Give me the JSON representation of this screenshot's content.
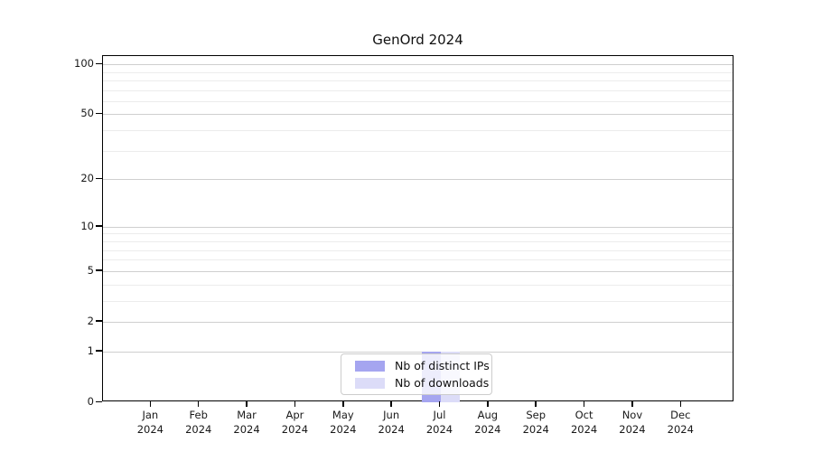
{
  "chart_data": {
    "type": "bar",
    "title": "GenOrd 2024",
    "x_tick_months": [
      "Jan",
      "Feb",
      "Mar",
      "Apr",
      "May",
      "Jun",
      "Jul",
      "Aug",
      "Sep",
      "Oct",
      "Nov",
      "Dec"
    ],
    "x_tick_year": "2024",
    "series": [
      {
        "name": "Nb of distinct IPs",
        "color": "#a5a5f0",
        "values": [
          0,
          0,
          0,
          0,
          0,
          0,
          1,
          0,
          0,
          0,
          0,
          0
        ]
      },
      {
        "name": "Nb of downloads",
        "color": "#dcdcf8",
        "values": [
          0,
          0,
          0,
          0,
          0,
          0,
          1,
          0,
          0,
          0,
          0,
          0
        ]
      }
    ],
    "y_scale": "log10(value+1)",
    "y_major_ticks": [
      0,
      1,
      2,
      5,
      10,
      20,
      50,
      100
    ],
    "y_minor_gridlines": [
      3,
      4,
      6,
      7,
      8,
      9,
      30,
      40,
      60,
      70,
      80,
      90
    ],
    "ylim": [
      0,
      112
    ],
    "grid": "horizontal",
    "legend": {
      "position": "bottom-center",
      "entries": [
        "Nb of distinct IPs",
        "Nb of downloads"
      ]
    },
    "colors": {
      "major_grid": "#cfcfcf",
      "minor_grid": "#ececec",
      "axis": "#000000",
      "text": "#191919",
      "background": "#ffffff"
    }
  }
}
